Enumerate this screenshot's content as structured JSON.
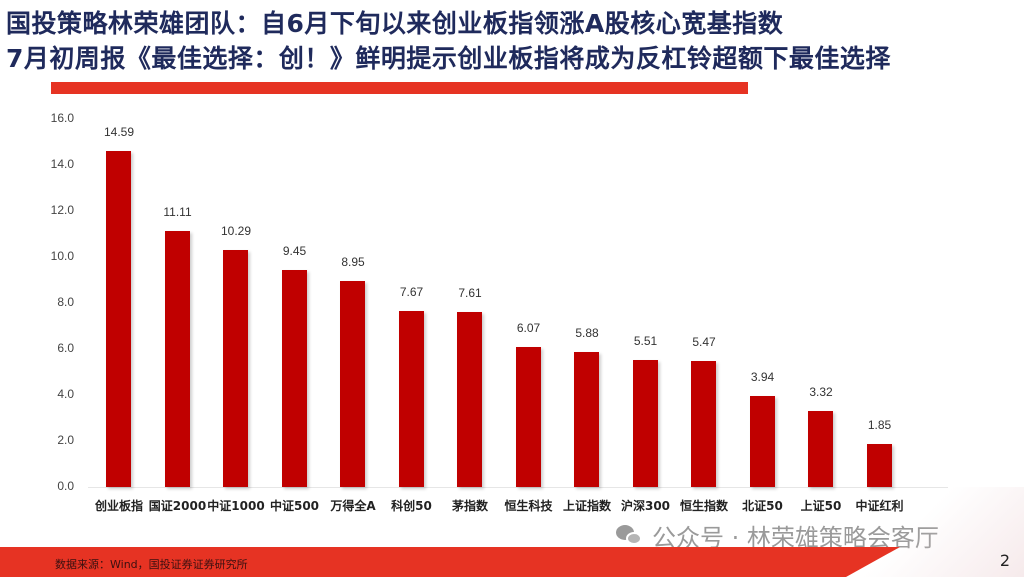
{
  "header": {
    "title_line1": "国投策略林荣雄团队：自6月下旬以来创业板指领涨A股核心宽基指数",
    "title_line2": "7月初周报《最佳选择：创！》鲜明提示创业板指将成为反杠铃超额下最佳选择"
  },
  "chart_data": {
    "type": "bar",
    "title": "",
    "xlabel": "",
    "ylabel": "",
    "ylim": [
      0,
      16
    ],
    "yticks": [
      "16.0",
      "14.0",
      "12.0",
      "10.0",
      "8.0",
      "6.0",
      "4.0",
      "2.0",
      "0.0"
    ],
    "grid": false,
    "legend": null,
    "bar_color": "#c00000",
    "categories": [
      "创业板指",
      "国证2000",
      "中证1000",
      "中证500",
      "万得全A",
      "科创50",
      "茅指数",
      "恒生科技",
      "上证指数",
      "沪深300",
      "恒生指数",
      "北证50",
      "上证50",
      "中证红利"
    ],
    "values": [
      14.59,
      11.11,
      10.29,
      9.45,
      8.95,
      7.67,
      7.61,
      6.07,
      5.88,
      5.51,
      5.47,
      3.94,
      3.32,
      1.85
    ],
    "value_labels": [
      "14.59",
      "11.11",
      "10.29",
      "9.45",
      "8.95",
      "7.67",
      "7.61",
      "6.07",
      "5.88",
      "5.51",
      "5.47",
      "3.94",
      "3.32",
      "1.85"
    ]
  },
  "watermark": {
    "text": "公众号 · 林荣雄策略会客厅",
    "icon": "wechat-icon"
  },
  "footer": {
    "source": "数据来源：Wind，国投证券证券研究所",
    "page_number": "2"
  },
  "colors": {
    "accent_red": "#e63323",
    "bar_red": "#c00000",
    "title_navy": "#1f2a5c"
  }
}
